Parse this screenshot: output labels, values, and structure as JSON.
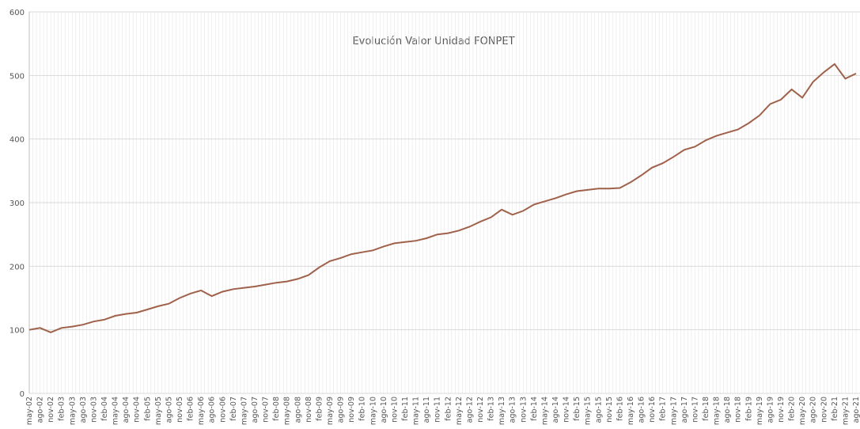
{
  "chart_data": {
    "type": "line",
    "title": "Evolución Valor Unidad FONPET",
    "categories": [
      "may-02",
      "ago-02",
      "nov-02",
      "feb-03",
      "may-03",
      "ago-03",
      "nov-03",
      "feb-04",
      "may-04",
      "ago-04",
      "nov-04",
      "feb-05",
      "may-05",
      "ago-05",
      "nov-05",
      "feb-06",
      "may-06",
      "ago-06",
      "nov-06",
      "feb-07",
      "may-07",
      "ago-07",
      "nov-07",
      "feb-08",
      "may-08",
      "ago-08",
      "nov-08",
      "feb-09",
      "may-09",
      "ago-09",
      "nov-09",
      "feb-10",
      "may-10",
      "ago-10",
      "nov-10",
      "feb-11",
      "may-11",
      "ago-11",
      "nov-11",
      "feb-12",
      "may-12",
      "ago-12",
      "nov-12",
      "feb-13",
      "may-13",
      "ago-13",
      "nov-13",
      "feb-14",
      "may-14",
      "ago-14",
      "nov-14",
      "feb-15",
      "may-15",
      "ago-15",
      "nov-15",
      "feb-16",
      "may-16",
      "ago-16",
      "nov-16",
      "feb-17",
      "may-17",
      "ago-17",
      "nov-17",
      "feb-18",
      "may-18",
      "ago-18",
      "nov-18",
      "feb-19",
      "may-19",
      "ago-19",
      "nov-19",
      "feb-20",
      "may-20",
      "ago-20",
      "nov-20",
      "feb-21",
      "may-21",
      "ago-21"
    ],
    "values": [
      100,
      103,
      96,
      103,
      105,
      108,
      113,
      116,
      122,
      125,
      127,
      132,
      137,
      141,
      150,
      157,
      162,
      153,
      160,
      164,
      166,
      168,
      171,
      174,
      176,
      180,
      186,
      198,
      208,
      213,
      219,
      222,
      225,
      231,
      236,
      238,
      240,
      244,
      250,
      252,
      256,
      262,
      270,
      277,
      289,
      281,
      287,
      297,
      302,
      307,
      313,
      318,
      320,
      322,
      322,
      323,
      332,
      343,
      355,
      362,
      372,
      383,
      388,
      398,
      405,
      410,
      415,
      425,
      437,
      455,
      462,
      478,
      465,
      490,
      505,
      518,
      495,
      503
    ],
    "color": "#a0614a",
    "ylim": [
      0,
      600
    ],
    "yticks": [
      0,
      100,
      200,
      300,
      400,
      500,
      600
    ],
    "grid": true
  }
}
